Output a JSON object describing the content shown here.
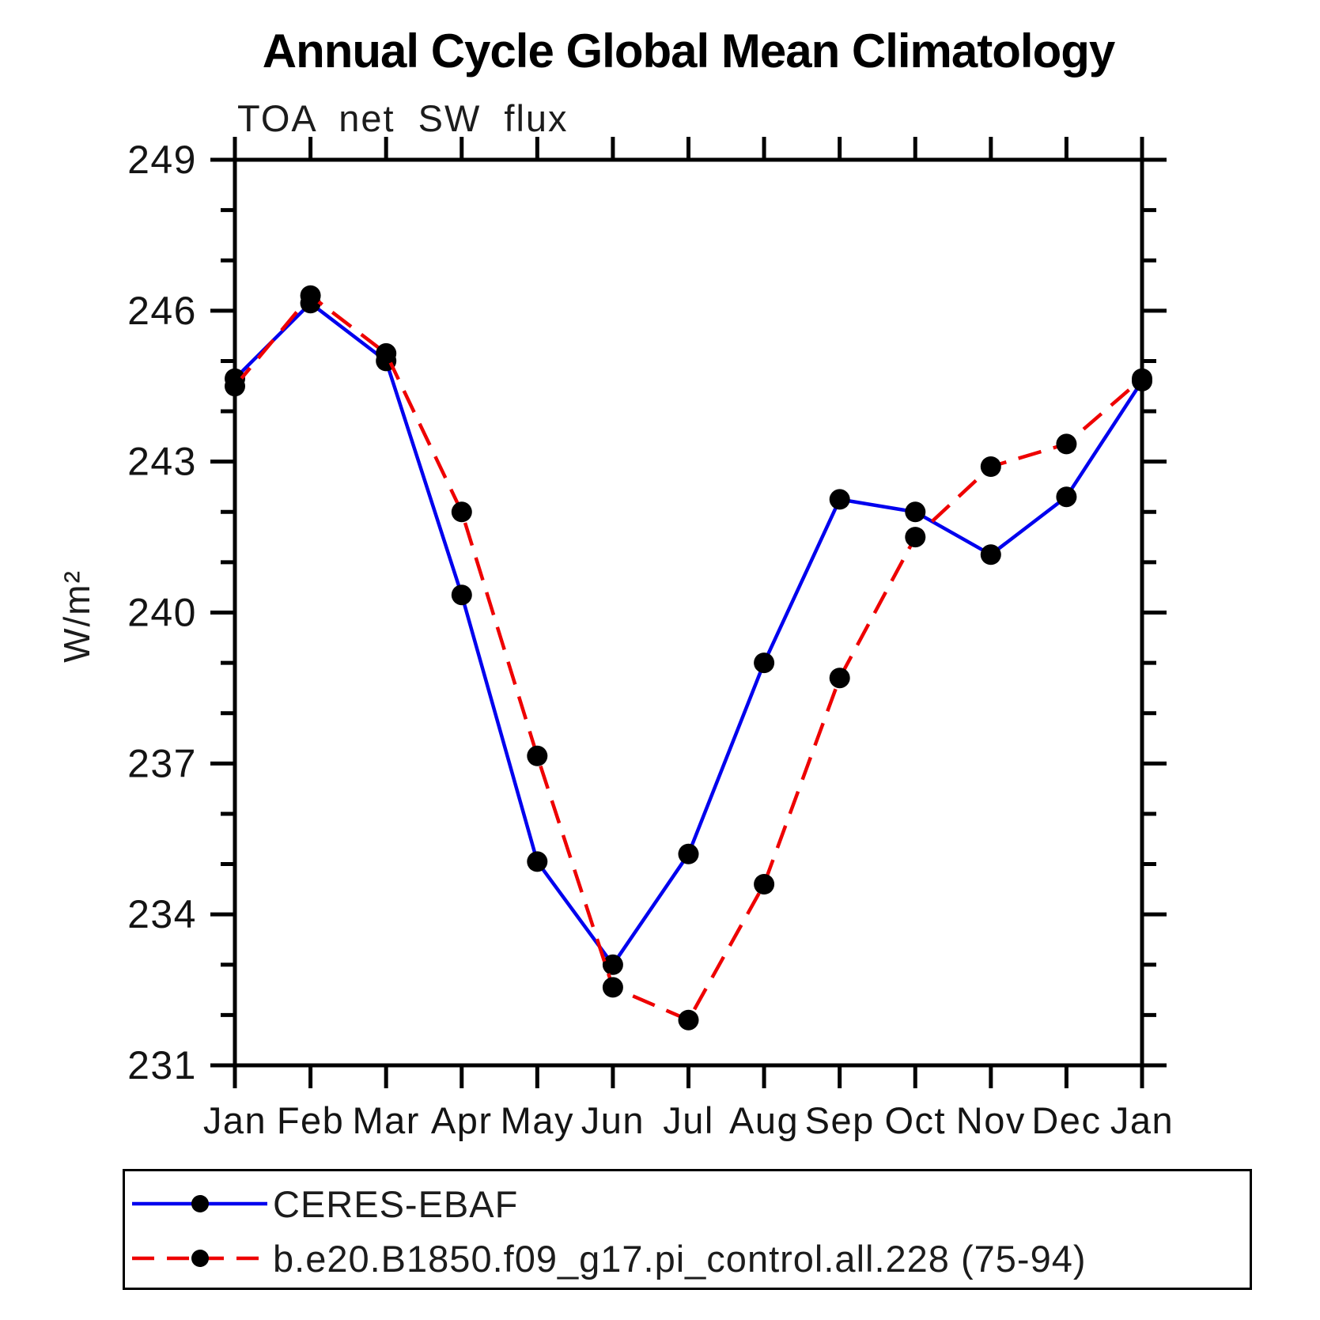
{
  "title": "Annual Cycle Global Mean Climatology",
  "subtitle": "TOA net SW flux",
  "chart_data": {
    "type": "line",
    "title": "Annual Cycle Global Mean Climatology",
    "subtitle": "TOA net SW flux",
    "xlabel": "",
    "ylabel": "W/m²",
    "x_tick_labels": [
      "Jan",
      "Feb",
      "Mar",
      "Apr",
      "May",
      "Jun",
      "Jul",
      "Aug",
      "Sep",
      "Oct",
      "Nov",
      "Dec",
      "Jan"
    ],
    "ylim": [
      231,
      249
    ],
    "y_major_ticks": [
      231,
      234,
      237,
      240,
      243,
      246,
      249
    ],
    "y_minor_step": 1,
    "grid": false,
    "legend_position": "bottom-box",
    "series": [
      {
        "name": "CERES-EBAF",
        "color": "#0000ee",
        "style": "solid",
        "marker": "circle",
        "marker_color": "#000000",
        "values": [
          244.65,
          246.15,
          245.0,
          240.35,
          235.05,
          233.0,
          235.2,
          239.0,
          242.25,
          242.0,
          241.15,
          242.3,
          244.6
        ]
      },
      {
        "name": "b.e20.B1850.f09_g17.pi_control.all.228 (75-94)",
        "color": "#ee0000",
        "style": "dashed",
        "marker": "circle",
        "marker_color": "#000000",
        "values": [
          244.5,
          246.3,
          245.15,
          242.0,
          237.15,
          232.55,
          231.9,
          234.6,
          238.7,
          241.5,
          242.9,
          243.35,
          244.65
        ]
      }
    ]
  },
  "colors": {
    "background": "#ffffff",
    "axis": "#000000",
    "marker": "#000000",
    "series1": "#0000ee",
    "series2": "#ee0000"
  }
}
